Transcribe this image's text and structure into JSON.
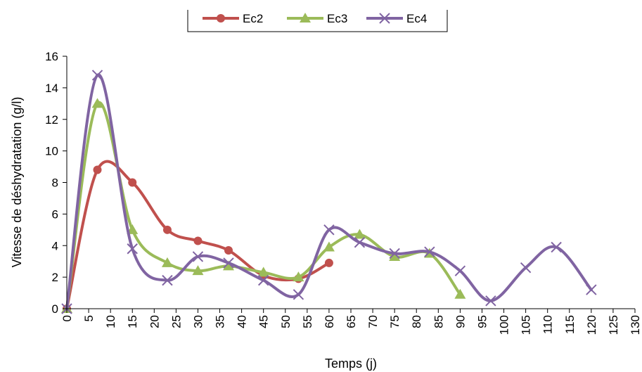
{
  "chart_data": {
    "type": "line",
    "smooth": true,
    "xlabel": "Temps (j)",
    "ylabel": "Vitesse  de déshydratation (g/l)",
    "xlim": [
      0,
      130
    ],
    "ylim": [
      0,
      16
    ],
    "x_ticks": [
      "0",
      "5",
      "10",
      "15",
      "20",
      "25",
      "30",
      "35",
      "40",
      "45",
      "50",
      "55",
      "60",
      "65",
      "70",
      "75",
      "80",
      "85",
      "90",
      "95",
      "100",
      "105",
      "110",
      "115",
      "120",
      "125",
      "130"
    ],
    "y_ticks": [
      "0",
      "2",
      "4",
      "6",
      "8",
      "10",
      "12",
      "14",
      "16"
    ],
    "grid": false,
    "legend_position": "top",
    "series": [
      {
        "name": "Ec2",
        "color": "#c0504d",
        "marker": "circle",
        "points": [
          [
            0,
            0
          ],
          [
            7,
            8.8
          ],
          [
            15,
            8.0
          ],
          [
            23,
            5.0
          ],
          [
            30,
            4.3
          ],
          [
            37,
            3.7
          ],
          [
            45,
            2.1
          ],
          [
            53,
            1.9
          ],
          [
            60,
            2.9
          ]
        ]
      },
      {
        "name": "Ec3",
        "color": "#9bbb59",
        "marker": "triangle",
        "points": [
          [
            0,
            0
          ],
          [
            7,
            13.0
          ],
          [
            15,
            5.0
          ],
          [
            23,
            2.9
          ],
          [
            30,
            2.4
          ],
          [
            37,
            2.7
          ],
          [
            45,
            2.3
          ],
          [
            53,
            2.0
          ],
          [
            60,
            3.9
          ],
          [
            67,
            4.7
          ],
          [
            75,
            3.3
          ],
          [
            83,
            3.5
          ],
          [
            90,
            0.9
          ]
        ]
      },
      {
        "name": "Ec4",
        "color": "#8064a2",
        "marker": "x",
        "points": [
          [
            0,
            0
          ],
          [
            7,
            14.8
          ],
          [
            15,
            3.8
          ],
          [
            23,
            1.8
          ],
          [
            30,
            3.3
          ],
          [
            37,
            2.9
          ],
          [
            45,
            1.8
          ],
          [
            53,
            0.9
          ],
          [
            60,
            5.0
          ],
          [
            67,
            4.2
          ],
          [
            75,
            3.5
          ],
          [
            83,
            3.6
          ],
          [
            90,
            2.4
          ],
          [
            97,
            0.5
          ],
          [
            105,
            2.6
          ],
          [
            112,
            3.9
          ],
          [
            120,
            1.2
          ]
        ]
      }
    ]
  }
}
